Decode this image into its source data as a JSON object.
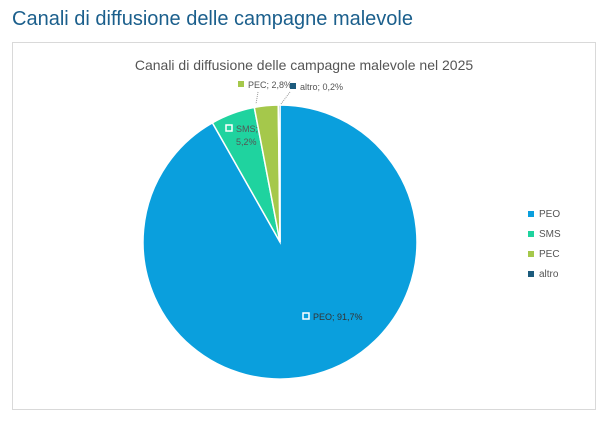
{
  "page_title": "Canali di diffusione delle campagne malevole",
  "chart_data": {
    "type": "pie",
    "title": "Canali di diffusione delle campagne malevole nel 2025",
    "categories": [
      "PEO",
      "SMS",
      "PEC",
      "altro"
    ],
    "values": [
      91.7,
      5.2,
      2.8,
      0.2
    ],
    "data_labels": [
      "PEO; 91,7%",
      "SMS; 5,2%",
      "PEC; 2,8%",
      "altro; 0,2%"
    ],
    "colors": [
      "#0a9fdd",
      "#1fd39f",
      "#a5c84b",
      "#1c5b7d"
    ],
    "legend": "right"
  }
}
